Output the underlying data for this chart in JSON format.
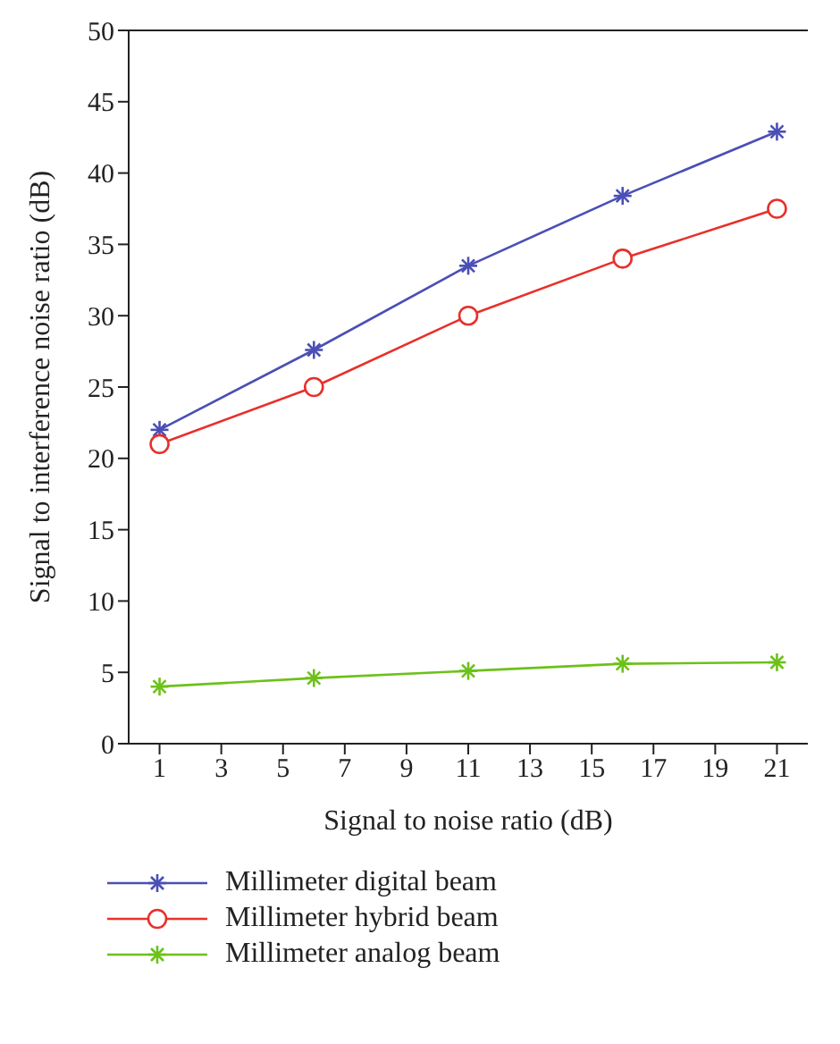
{
  "chart_data": {
    "type": "line",
    "xlabel": "Signal to noise ratio (dB)",
    "ylabel": "Signal to interference noise ratio (dB)",
    "x": [
      1,
      6,
      11,
      16,
      21
    ],
    "xlim": [
      0,
      22
    ],
    "xticks": [
      1,
      3,
      5,
      7,
      9,
      11,
      13,
      15,
      17,
      19,
      21
    ],
    "ylim": [
      0,
      50
    ],
    "yticks": [
      0,
      5,
      10,
      15,
      20,
      25,
      30,
      35,
      40,
      45,
      50
    ],
    "grid": false,
    "legend": "bottom left",
    "line_style": "solid",
    "series": [
      {
        "name": "Millimeter digital beam",
        "color": "#4a4fb5",
        "marker": "cross",
        "values": [
          22,
          27.6,
          33.5,
          38.4,
          42.9
        ]
      },
      {
        "name": "Millimeter hybrid beam",
        "color": "#e8302a",
        "marker": "circle",
        "values": [
          21,
          25,
          30,
          34,
          37.5
        ]
      },
      {
        "name": "Millimeter analog beam",
        "color": "#6cc11a",
        "marker": "cross",
        "values": [
          4,
          4.6,
          5.1,
          5.6,
          5.7
        ]
      }
    ]
  }
}
